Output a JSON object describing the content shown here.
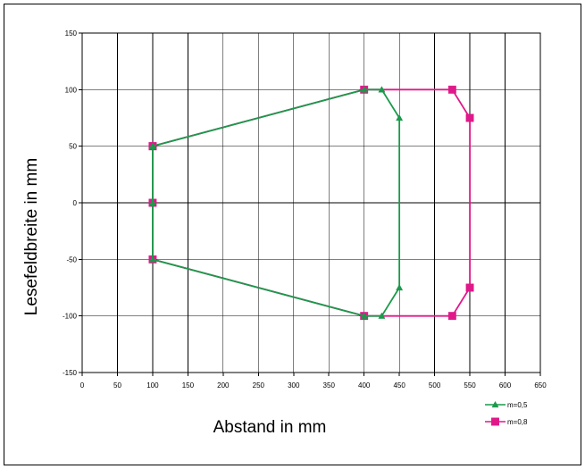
{
  "chart_data": {
    "type": "line",
    "xlabel": "Abstand in mm",
    "ylabel": "Lesefeldbreite in mm",
    "xlim": [
      0,
      650
    ],
    "ylim": [
      -150,
      150
    ],
    "x_ticks": [
      "0",
      "50",
      "100",
      "150",
      "200",
      "250",
      "300",
      "350",
      "400",
      "450",
      "500",
      "550",
      "600",
      "650"
    ],
    "y_ticks": [
      "150",
      "100",
      "50",
      "0",
      "-50",
      "-100",
      "-150"
    ],
    "grid": true,
    "legend_position": "bottom-right",
    "series": [
      {
        "name": "m=0,5",
        "color": "#1a9a4a",
        "marker": "triangle",
        "points": [
          [
            100,
            50
          ],
          [
            400,
            100
          ],
          [
            425,
            100
          ],
          [
            450,
            75
          ],
          [
            450,
            -75
          ],
          [
            425,
            -100
          ],
          [
            400,
            -100
          ],
          [
            100,
            -50
          ],
          [
            100,
            0
          ],
          [
            100,
            50
          ]
        ]
      },
      {
        "name": "m=0,8",
        "color": "#e0198a",
        "marker": "square",
        "points": [
          [
            100,
            50
          ],
          [
            400,
            100
          ],
          [
            525,
            100
          ],
          [
            550,
            75
          ],
          [
            550,
            -75
          ],
          [
            525,
            -100
          ],
          [
            400,
            -100
          ],
          [
            100,
            -50
          ],
          [
            100,
            0
          ],
          [
            100,
            50
          ]
        ]
      }
    ]
  }
}
